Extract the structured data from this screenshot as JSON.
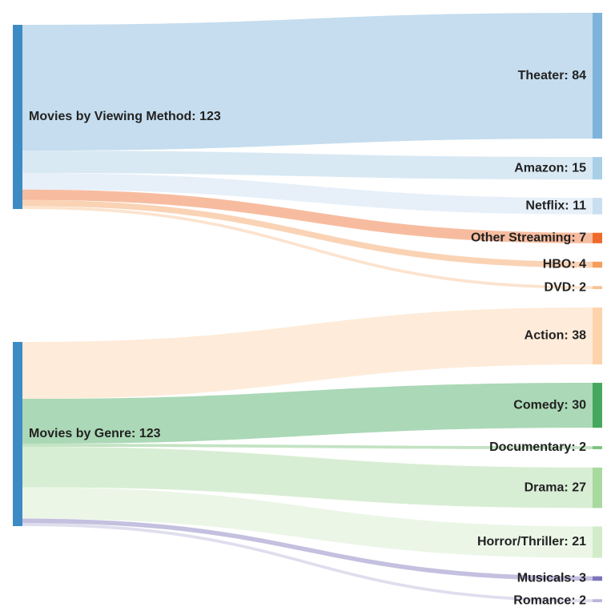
{
  "chart_data": {
    "type": "sankey",
    "sources": [
      {
        "label": "Movies by Viewing Method: 123",
        "value": 123,
        "color": "#3d8bc4",
        "targets": [
          {
            "label": "Theater: 84",
            "value": 84,
            "color": "#7fb3da"
          },
          {
            "label": "Amazon: 15",
            "value": 15,
            "color": "#a9cfe7"
          },
          {
            "label": "Netflix: 11",
            "value": 11,
            "color": "#c9def1"
          },
          {
            "label": "Other Streaming: 7",
            "value": 7,
            "color": "#ee6a2a"
          },
          {
            "label": "HBO: 4",
            "value": 4,
            "color": "#f59d5a"
          },
          {
            "label": "DVD: 2",
            "value": 2,
            "color": "#f9c193"
          }
        ]
      },
      {
        "label": "Movies by Genre: 123",
        "value": 123,
        "color": "#3d8bc4",
        "targets": [
          {
            "label": "Action: 38",
            "value": 38,
            "color": "#fdd3ab"
          },
          {
            "label": "Comedy: 30",
            "value": 30,
            "color": "#45a85e"
          },
          {
            "label": "Documentary: 2",
            "value": 2,
            "color": "#79c27a"
          },
          {
            "label": "Drama: 27",
            "value": 27,
            "color": "#a8d99f"
          },
          {
            "label": "Horror/Thriller: 21",
            "value": 21,
            "color": "#d2ecca"
          },
          {
            "label": "Musicals: 3",
            "value": 3,
            "color": "#7c74b8"
          },
          {
            "label": "Romance: 2",
            "value": 2,
            "color": "#b8b6da"
          }
        ]
      }
    ]
  }
}
